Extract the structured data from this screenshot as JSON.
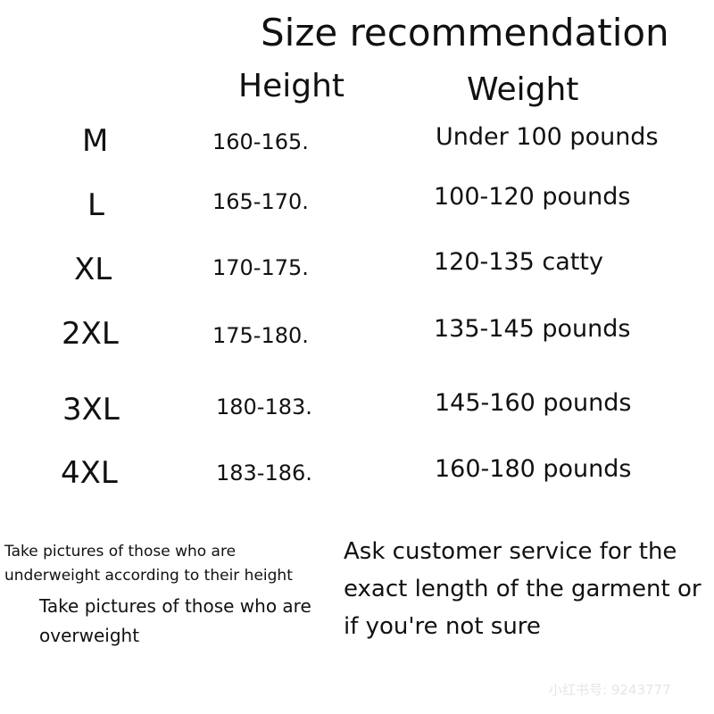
{
  "title": "Size recommendation",
  "headers": {
    "height": "Height",
    "weight": "Weight"
  },
  "rows": [
    {
      "size": "M",
      "height": "160-165.",
      "weight": "Under 100 pounds"
    },
    {
      "size": "L",
      "height": "165-170.",
      "weight": "100-120 pounds"
    },
    {
      "size": "XL",
      "height": "170-175.",
      "weight": "120-135 catty"
    },
    {
      "size": "2XL",
      "height": "175-180.",
      "weight": "135-145 pounds"
    },
    {
      "size": "3XL",
      "height": "180-183.",
      "weight": "145-160 pounds"
    },
    {
      "size": "4XL",
      "height": "183-186.",
      "weight": "160-180 pounds"
    }
  ],
  "notes": {
    "underweight_1": "Take pictures of those who are",
    "underweight_2": "underweight according to their height",
    "overweight_1": "Take pictures of those who are",
    "overweight_2": "overweight",
    "service_1": "Ask customer service for the",
    "service_2": "exact length of the garment or",
    "service_3": " if you're not sure"
  },
  "watermark": "小红书号: 9243777"
}
